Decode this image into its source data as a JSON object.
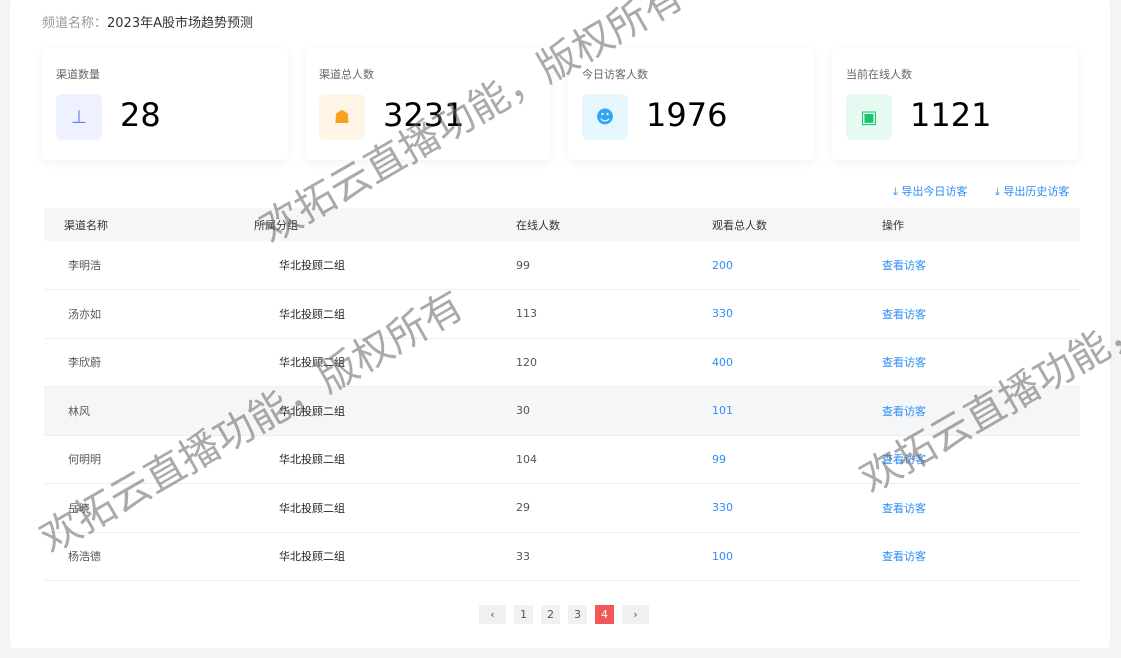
{
  "channel": {
    "label": "频道名称：",
    "name": "2023年A股市场趋势预测"
  },
  "cards": [
    {
      "label": "渠道数量",
      "value": "28",
      "icon": "org-chart-icon",
      "color": "#5b7cf6",
      "bg": "#eef1ff"
    },
    {
      "label": "渠道总人数",
      "value": "3231",
      "icon": "group-icon",
      "color": "#f7a21b",
      "bg": "#fff5e6"
    },
    {
      "label": "今日访客人数",
      "value": "1976",
      "icon": "visitor-icon",
      "color": "#2ea7f0",
      "bg": "#e6f6fe"
    },
    {
      "label": "当前在线人数",
      "value": "1121",
      "icon": "online-icon",
      "color": "#17c46f",
      "bg": "#e6faf1"
    }
  ],
  "exports": {
    "today": "导出今日访客",
    "history": "导出历史访客"
  },
  "table": {
    "headers": [
      "渠道名称",
      "所属分组",
      "在线人数",
      "观看总人数",
      "操作"
    ],
    "rows": [
      [
        "李明浩",
        "华北投顾二组",
        "99",
        "200",
        "查看访客"
      ],
      [
        "汤亦如",
        "华北投顾二组",
        "113",
        "330",
        "查看访客"
      ],
      [
        "李欣蔚",
        "华北投顾二组",
        "120",
        "400",
        "查看访客"
      ],
      [
        "林风",
        "华北投顾二组",
        "30",
        "101",
        "查看访客"
      ],
      [
        "何明明",
        "华北投顾二组",
        "104",
        "99",
        "查看访客"
      ],
      [
        "岳晓",
        "华北投顾二组",
        "29",
        "330",
        "查看访客"
      ],
      [
        "杨浩德",
        "华北投顾二组",
        "33",
        "100",
        "查看访客"
      ]
    ]
  },
  "pagination": {
    "pages": [
      "1",
      "2",
      "3",
      "4"
    ],
    "current": "4"
  },
  "watermark": "欢拓云直播功能，版权所有"
}
